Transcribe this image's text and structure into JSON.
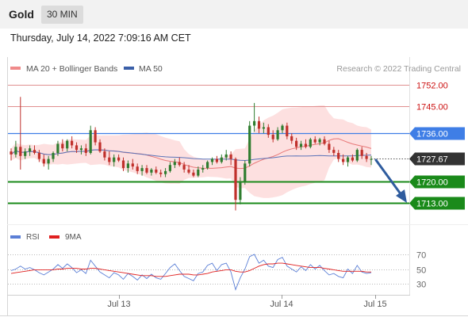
{
  "header": {
    "title": "Gold",
    "timeframe": "30 MIN"
  },
  "datetime": "Thursday, July 14, 2022 7:09:16 AM CET",
  "legend": {
    "items": [
      {
        "label": "MA 20 + Bollinger Bands",
        "color": "#f08a8a"
      },
      {
        "label": "MA 50",
        "color": "#3a5fa8"
      }
    ],
    "credit": "Research © 2022 Trading Central"
  },
  "levels": [
    {
      "value": 1752.0,
      "label": "1752.00",
      "kind": "resistance-thin"
    },
    {
      "value": 1745.0,
      "label": "1745.00",
      "kind": "resistance-thin"
    },
    {
      "value": 1736.0,
      "label": "1736.00",
      "kind": "pivot"
    },
    {
      "value": 1727.67,
      "label": "1727.67",
      "kind": "last"
    },
    {
      "value": 1720.0,
      "label": "1720.00",
      "kind": "support"
    },
    {
      "value": 1713.0,
      "label": "1713.00",
      "kind": "support"
    }
  ],
  "colors": {
    "up": "#2f7d2f",
    "down": "#c0302b",
    "pivot": "#3f7ee6",
    "support": "#1a8a1a",
    "resistanceText": "#cc1111",
    "last": "#333333",
    "arrow": "#2f5c9e",
    "band": "#fcd6d6",
    "ma20": "#e87878",
    "ma50": "#5b73b8",
    "rsi": "#5b7fd6",
    "rsiMa": "#e02020"
  },
  "chart_data": {
    "type": "candlestick",
    "x_ticks": [
      "Jul 13",
      "Jul 14",
      "Jul 15"
    ],
    "ylim": [
      1709,
      1756
    ],
    "candles": [
      [
        1730.0,
        1731.0,
        1727.0,
        1729.0
      ],
      [
        1729.0,
        1733.5,
        1728.0,
        1731.5
      ],
      [
        1731.5,
        1748.0,
        1724.0,
        1728.5
      ],
      [
        1728.5,
        1731.0,
        1727.5,
        1730.0
      ],
      [
        1730.0,
        1732.0,
        1728.5,
        1731.0
      ],
      [
        1730.5,
        1732.0,
        1729.0,
        1729.5
      ],
      [
        1729.5,
        1730.5,
        1726.5,
        1727.5
      ],
      [
        1727.5,
        1729.0,
        1725.0,
        1726.0
      ],
      [
        1726.0,
        1728.5,
        1724.0,
        1727.5
      ],
      [
        1727.5,
        1730.0,
        1726.5,
        1729.5
      ],
      [
        1729.5,
        1733.5,
        1728.5,
        1732.5
      ],
      [
        1732.5,
        1734.0,
        1730.0,
        1731.0
      ],
      [
        1731.0,
        1734.0,
        1730.0,
        1733.5
      ],
      [
        1733.5,
        1735.0,
        1731.0,
        1732.0
      ],
      [
        1732.0,
        1733.0,
        1729.5,
        1730.5
      ],
      [
        1730.5,
        1732.0,
        1729.0,
        1731.0
      ],
      [
        1731.0,
        1732.5,
        1728.5,
        1729.5
      ],
      [
        1729.5,
        1738.5,
        1729.0,
        1737.0
      ],
      [
        1737.0,
        1738.0,
        1732.0,
        1733.0
      ],
      [
        1733.0,
        1734.0,
        1729.5,
        1730.0
      ],
      [
        1730.0,
        1731.0,
        1727.0,
        1728.0
      ],
      [
        1728.0,
        1730.0,
        1725.5,
        1726.5
      ],
      [
        1726.5,
        1729.0,
        1725.0,
        1728.0
      ],
      [
        1728.0,
        1729.0,
        1726.5,
        1727.0
      ],
      [
        1727.0,
        1728.0,
        1723.5,
        1724.5
      ],
      [
        1724.5,
        1727.0,
        1723.0,
        1726.0
      ],
      [
        1726.0,
        1727.5,
        1724.0,
        1725.0
      ],
      [
        1725.0,
        1726.0,
        1722.5,
        1723.5
      ],
      [
        1723.5,
        1725.5,
        1722.0,
        1724.5
      ],
      [
        1724.5,
        1725.5,
        1722.5,
        1723.0
      ],
      [
        1723.0,
        1724.5,
        1722.0,
        1724.0
      ],
      [
        1724.0,
        1725.0,
        1722.5,
        1723.0
      ],
      [
        1723.0,
        1724.0,
        1721.5,
        1722.5
      ],
      [
        1722.5,
        1724.5,
        1721.5,
        1723.5
      ],
      [
        1723.5,
        1726.5,
        1723.0,
        1725.5
      ],
      [
        1725.5,
        1727.5,
        1724.5,
        1726.5
      ],
      [
        1726.5,
        1728.0,
        1725.0,
        1725.5
      ],
      [
        1725.5,
        1726.5,
        1723.0,
        1724.0
      ],
      [
        1724.0,
        1725.5,
        1722.5,
        1723.0
      ],
      [
        1723.0,
        1724.0,
        1721.5,
        1722.0
      ],
      [
        1722.0,
        1725.0,
        1721.5,
        1724.0
      ],
      [
        1724.0,
        1725.5,
        1723.0,
        1724.5
      ],
      [
        1724.5,
        1727.0,
        1724.0,
        1726.5
      ],
      [
        1726.5,
        1728.0,
        1725.5,
        1727.5
      ],
      [
        1727.5,
        1728.5,
        1726.0,
        1726.5
      ],
      [
        1726.5,
        1729.0,
        1726.0,
        1728.0
      ],
      [
        1728.0,
        1730.5,
        1727.0,
        1729.0
      ],
      [
        1729.0,
        1730.0,
        1725.5,
        1727.5
      ],
      [
        1727.5,
        1728.0,
        1710.5,
        1714.0
      ],
      [
        1714.0,
        1721.5,
        1712.5,
        1720.0
      ],
      [
        1720.0,
        1727.0,
        1719.0,
        1726.0
      ],
      [
        1726.0,
        1740.0,
        1725.0,
        1738.5
      ],
      [
        1738.5,
        1746.0,
        1736.5,
        1740.0
      ],
      [
        1740.0,
        1741.5,
        1736.0,
        1737.5
      ],
      [
        1737.5,
        1739.5,
        1736.0,
        1738.0
      ],
      [
        1738.0,
        1739.0,
        1734.5,
        1735.5
      ],
      [
        1735.5,
        1737.0,
        1733.0,
        1734.0
      ],
      [
        1734.0,
        1738.0,
        1733.5,
        1737.0
      ],
      [
        1737.0,
        1739.0,
        1736.0,
        1738.5
      ],
      [
        1738.5,
        1739.5,
        1734.0,
        1735.0
      ],
      [
        1735.0,
        1736.0,
        1732.5,
        1733.5
      ],
      [
        1733.5,
        1734.5,
        1730.5,
        1731.5
      ],
      [
        1731.5,
        1733.5,
        1730.5,
        1732.5
      ],
      [
        1732.5,
        1734.0,
        1731.0,
        1731.5
      ],
      [
        1731.5,
        1734.5,
        1731.0,
        1734.0
      ],
      [
        1734.0,
        1735.0,
        1732.5,
        1733.0
      ],
      [
        1733.0,
        1734.5,
        1732.0,
        1734.0
      ],
      [
        1734.0,
        1735.0,
        1732.0,
        1732.5
      ],
      [
        1732.5,
        1733.5,
        1729.5,
        1730.5
      ],
      [
        1730.5,
        1731.5,
        1728.5,
        1729.5
      ],
      [
        1729.5,
        1730.5,
        1726.5,
        1727.5
      ],
      [
        1727.5,
        1729.0,
        1725.5,
        1726.5
      ],
      [
        1726.5,
        1728.5,
        1725.0,
        1728.0
      ],
      [
        1728.0,
        1729.0,
        1726.5,
        1727.0
      ],
      [
        1727.0,
        1731.0,
        1726.5,
        1730.5
      ],
      [
        1730.5,
        1731.5,
        1727.5,
        1728.5
      ],
      [
        1728.5,
        1729.5,
        1726.5,
        1727.5
      ],
      [
        1727.5,
        1728.5,
        1725.5,
        1727.5
      ]
    ],
    "rsi": [
      48,
      50,
      54,
      50,
      52,
      49,
      45,
      42,
      46,
      50,
      56,
      51,
      57,
      52,
      45,
      49,
      44,
      62,
      54,
      46,
      42,
      38,
      45,
      42,
      36,
      44,
      40,
      35,
      42,
      37,
      43,
      38,
      36,
      44,
      52,
      57,
      48,
      40,
      37,
      34,
      44,
      46,
      55,
      58,
      48,
      56,
      58,
      46,
      22,
      38,
      50,
      67,
      70,
      58,
      62,
      54,
      52,
      63,
      66,
      54,
      50,
      46,
      53,
      48,
      56,
      50,
      55,
      48,
      42,
      44,
      40,
      38,
      50,
      44,
      55,
      46,
      44,
      45
    ],
    "rsi_ma": [
      44,
      45,
      46,
      47,
      48,
      49,
      49,
      49,
      49,
      49,
      50,
      50,
      51,
      51,
      51,
      50,
      50,
      51,
      51,
      50,
      49,
      48,
      47,
      46,
      45,
      44,
      43,
      42,
      41,
      41,
      41,
      40,
      40,
      40,
      41,
      42,
      43,
      43,
      43,
      42,
      42,
      43,
      44,
      46,
      47,
      48,
      49,
      49,
      47,
      46,
      46,
      48,
      51,
      54,
      56,
      57,
      57,
      58,
      58,
      57,
      56,
      55,
      54,
      53,
      52,
      52,
      52,
      51,
      50,
      49,
      48,
      47,
      47,
      47,
      47,
      47,
      46,
      46
    ],
    "rsi_levels": [
      70,
      50,
      30
    ],
    "rsi_legend": [
      "RSI",
      "9MA"
    ]
  }
}
